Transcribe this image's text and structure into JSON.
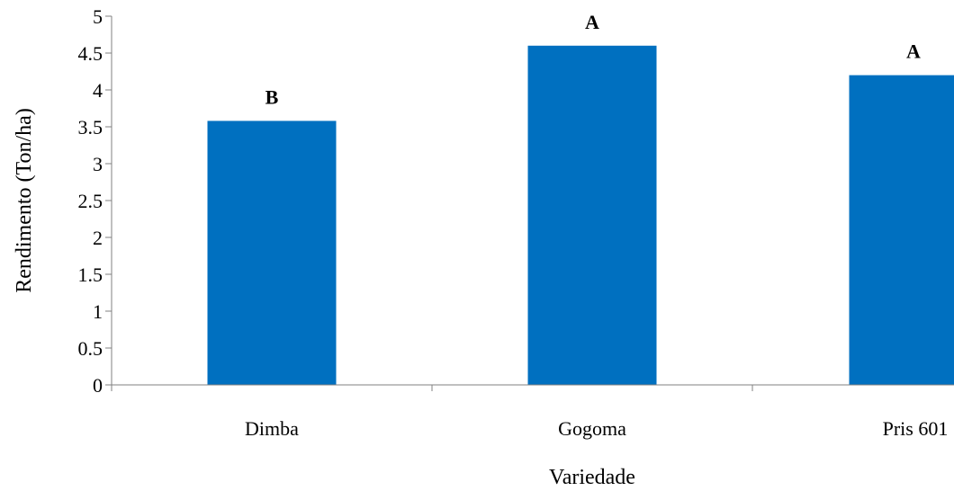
{
  "chart_data": {
    "type": "bar",
    "title": "",
    "xlabel": "Variedade",
    "ylabel": "Rendimento (Ton/ha)",
    "categories": [
      "Dimba",
      "Gogoma",
      "Pris 601"
    ],
    "series": [
      {
        "values": [
          3.58,
          4.6,
          4.2
        ],
        "labels": [
          "B",
          "A",
          "A"
        ]
      }
    ],
    "ylim": [
      0,
      5
    ],
    "yticks": [
      "0",
      "0.5",
      "1",
      "1.5",
      "2",
      "2.5",
      "3",
      "3.5",
      "4",
      "4.5",
      "5"
    ],
    "grid": false,
    "legend": "none",
    "colors": {
      "bar": "#0070C0",
      "axis": "#808080",
      "text": "#000000"
    }
  }
}
